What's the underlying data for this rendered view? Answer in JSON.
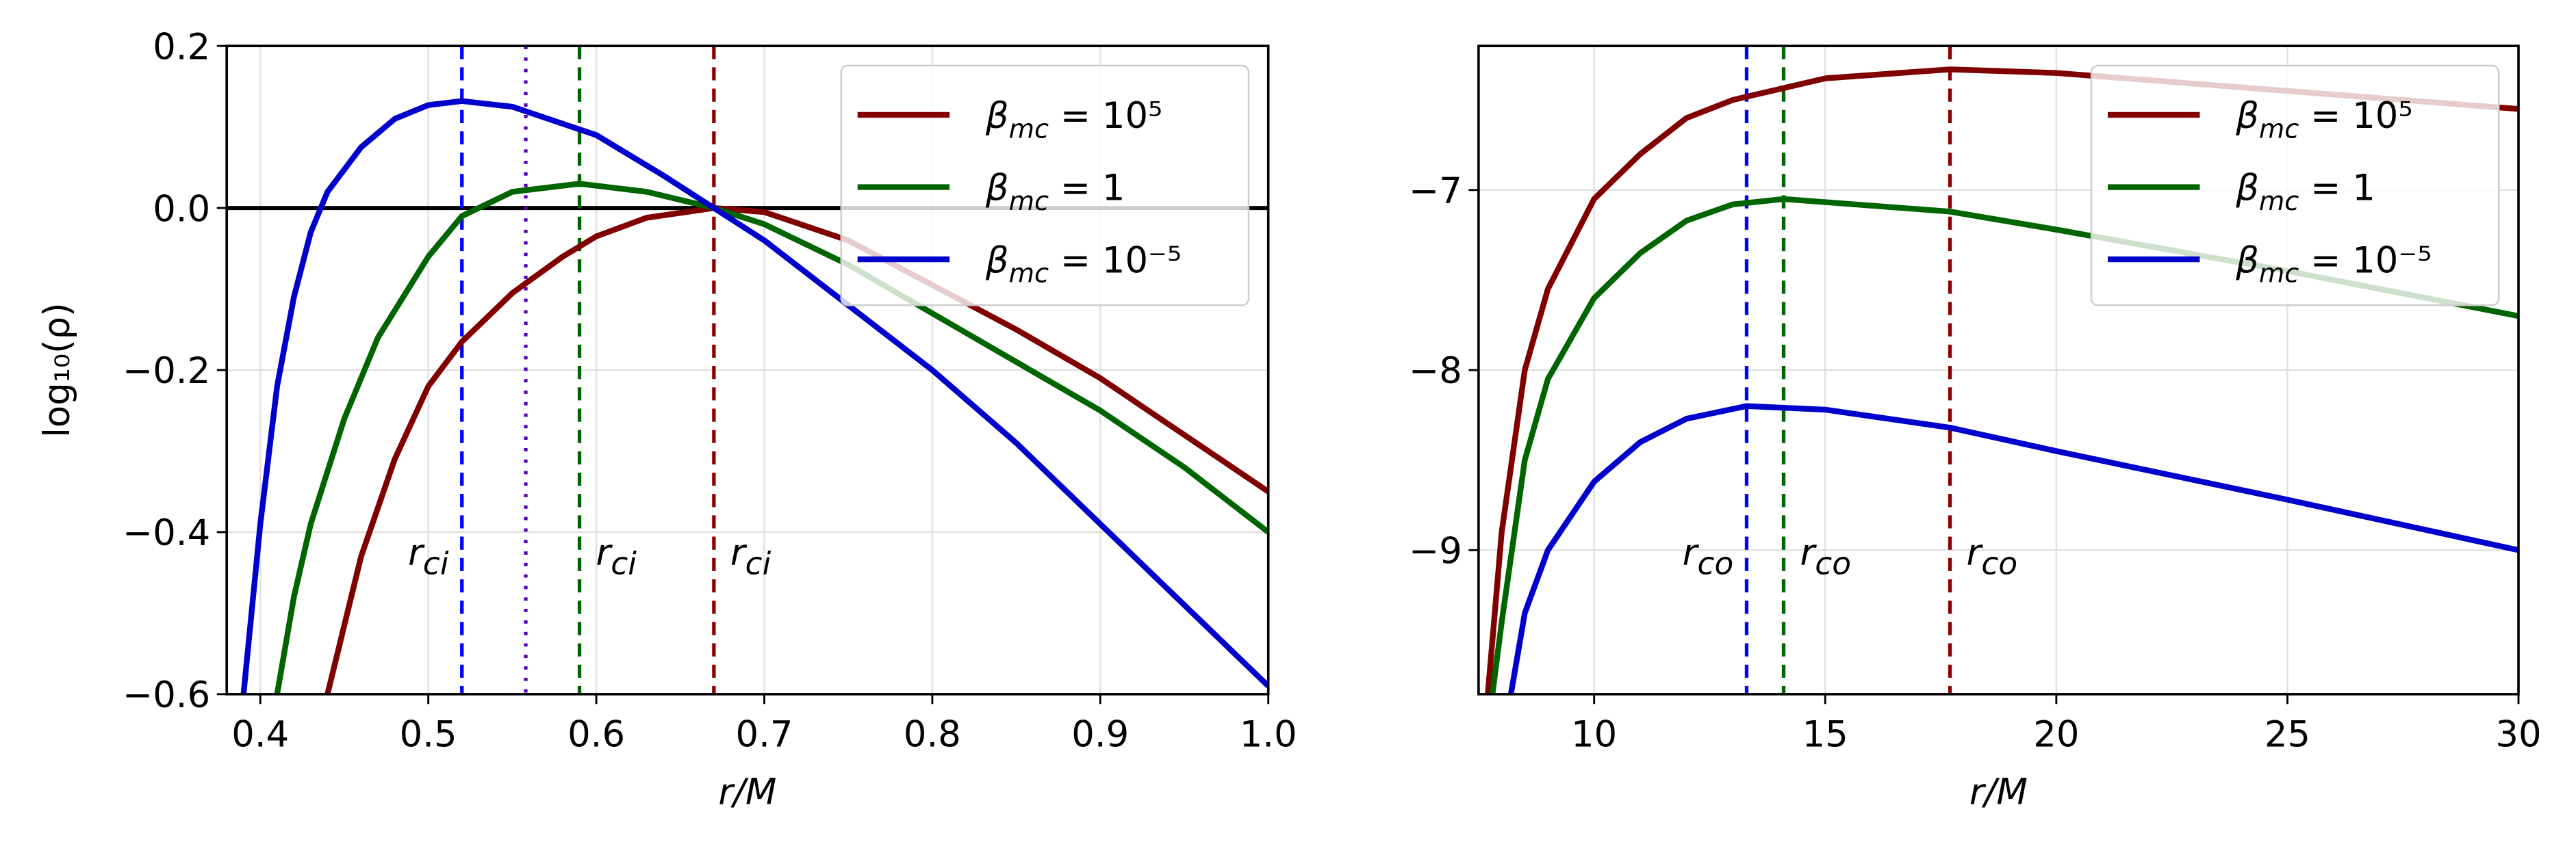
{
  "chart_data": [
    {
      "type": "line",
      "xlabel": "r/M",
      "ylabel": "log₁₀(ρ)",
      "xlim": [
        0.38,
        1.0
      ],
      "ylim": [
        -0.6,
        0.2
      ],
      "xticks": [
        0.4,
        0.5,
        0.6,
        0.7,
        0.8,
        0.9,
        {
          "value": 1.0,
          "label": "1.0"
        }
      ],
      "yticks": [
        {
          "value": -0.6,
          "label": "−0.6"
        },
        {
          "value": -0.4,
          "label": "−0.4"
        },
        {
          "value": -0.2,
          "label": "−0.2"
        },
        {
          "value": 0,
          "label": "0.0"
        },
        0.2
      ],
      "grid": true,
      "legend": "upper right",
      "hline": 0,
      "series": [
        {
          "name": "βmc = 10⁵",
          "color": "#800000",
          "x": [
            0.44,
            0.46,
            0.48,
            0.5,
            0.52,
            0.55,
            0.58,
            0.6,
            0.63,
            0.67,
            0.7,
            0.75,
            0.8,
            0.85,
            0.9,
            0.95,
            1.0
          ],
          "values": [
            -0.6,
            -0.43,
            -0.31,
            -0.22,
            -0.165,
            -0.105,
            -0.06,
            -0.035,
            -0.012,
            0.0,
            -0.005,
            -0.04,
            -0.095,
            -0.15,
            -0.21,
            -0.28,
            -0.35
          ]
        },
        {
          "name": "βmc = 1",
          "color": "#006400",
          "x": [
            0.41,
            0.42,
            0.43,
            0.45,
            0.47,
            0.5,
            0.52,
            0.55,
            0.59,
            0.63,
            0.67,
            0.7,
            0.75,
            0.8,
            0.85,
            0.9,
            0.95,
            1.0
          ],
          "values": [
            -0.6,
            -0.48,
            -0.39,
            -0.26,
            -0.16,
            -0.06,
            -0.01,
            0.02,
            0.03,
            0.02,
            0.0,
            -0.02,
            -0.07,
            -0.13,
            -0.19,
            -0.25,
            -0.32,
            -0.4
          ]
        },
        {
          "name": "βmc = 10⁻⁵",
          "color": "#0000cd",
          "x": [
            0.39,
            0.4,
            0.41,
            0.42,
            0.43,
            0.44,
            0.46,
            0.48,
            0.5,
            0.52,
            0.55,
            0.6,
            0.64,
            0.67,
            0.7,
            0.75,
            0.8,
            0.85,
            0.9,
            0.95,
            1.0
          ],
          "values": [
            -0.6,
            -0.39,
            -0.22,
            -0.11,
            -0.03,
            0.02,
            0.075,
            0.11,
            0.127,
            0.132,
            0.125,
            0.09,
            0.04,
            0.0,
            -0.04,
            -0.12,
            -0.2,
            -0.29,
            -0.39,
            -0.49,
            -0.59
          ]
        }
      ],
      "vlines": [
        {
          "x": 0.52,
          "color": "#0000ff",
          "style": "dashed",
          "label": "rci"
        },
        {
          "x": 0.558,
          "color": "#5a00b4",
          "style": "dotted"
        },
        {
          "x": 0.59,
          "color": "#006400",
          "style": "dashed",
          "label": "rci"
        },
        {
          "x": 0.67,
          "color": "#8b0000",
          "style": "dashed",
          "label": "rci"
        }
      ]
    },
    {
      "type": "line",
      "xlabel": "r/M",
      "xlim": [
        7.5,
        30
      ],
      "ylim": [
        -9.8,
        -6.2
      ],
      "xticks": [
        10,
        15,
        20,
        25,
        30
      ],
      "yticks": [
        {
          "value": -9,
          "label": "−9"
        },
        {
          "value": -8,
          "label": "−8"
        },
        {
          "value": -7,
          "label": "−7"
        }
      ],
      "grid": true,
      "legend": "upper right",
      "series": [
        {
          "name": "βmc = 10⁵",
          "color": "#800000",
          "x": [
            7.7,
            8,
            8.5,
            9,
            10,
            11,
            12,
            13,
            15,
            17.7,
            20,
            25,
            30
          ],
          "values": [
            -9.8,
            -8.9,
            -8.0,
            -7.55,
            -7.05,
            -6.8,
            -6.6,
            -6.5,
            -6.38,
            -6.33,
            -6.35,
            -6.45,
            -6.55
          ]
        },
        {
          "name": "βmc = 1",
          "color": "#006400",
          "x": [
            7.8,
            8,
            8.5,
            9,
            10,
            11,
            12,
            13,
            14.1,
            17.7,
            20,
            25,
            30
          ],
          "values": [
            -9.8,
            -9.4,
            -8.5,
            -8.05,
            -7.6,
            -7.35,
            -7.17,
            -7.08,
            -7.05,
            -7.12,
            -7.22,
            -7.45,
            -7.7
          ]
        },
        {
          "name": "βmc = 10⁻⁵",
          "color": "#0000cd",
          "x": [
            8.2,
            8.5,
            9,
            10,
            11,
            12,
            13.3,
            15,
            17.7,
            20,
            25,
            30
          ],
          "values": [
            -9.8,
            -9.35,
            -9.0,
            -8.62,
            -8.4,
            -8.27,
            -8.2,
            -8.22,
            -8.32,
            -8.45,
            -8.72,
            -9.0
          ]
        }
      ],
      "vlines": [
        {
          "x": 13.3,
          "color": "#0000ff",
          "style": "dashed",
          "label": "rco"
        },
        {
          "x": 14.1,
          "color": "#006400",
          "style": "dashed",
          "label": "rco"
        },
        {
          "x": 17.7,
          "color": "#8b0000",
          "style": "dashed",
          "label": "rco"
        }
      ]
    }
  ]
}
